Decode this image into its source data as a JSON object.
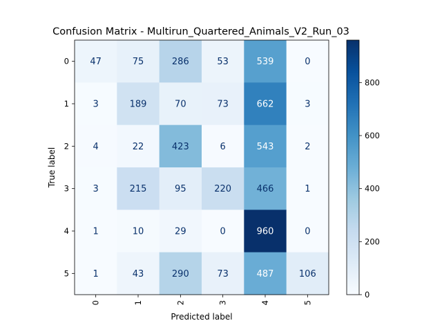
{
  "chart_data": {
    "type": "heatmap",
    "title": "Confusion Matrix - Multirun_Quartered_Animals_V2_Run_03",
    "xlabel": "Predicted label",
    "ylabel": "True label",
    "x_categories": [
      "0",
      "1",
      "2",
      "3",
      "4",
      "5"
    ],
    "y_categories": [
      "0",
      "1",
      "2",
      "3",
      "4",
      "5"
    ],
    "values": [
      [
        47,
        75,
        286,
        53,
        539,
        0
      ],
      [
        3,
        189,
        70,
        73,
        662,
        3
      ],
      [
        4,
        22,
        423,
        6,
        543,
        2
      ],
      [
        3,
        215,
        95,
        220,
        466,
        1
      ],
      [
        1,
        10,
        29,
        0,
        960,
        0
      ],
      [
        1,
        43,
        290,
        73,
        487,
        106
      ]
    ],
    "colormap": "Blues",
    "colorbar": {
      "range": [
        0,
        960
      ],
      "ticks": [
        0,
        200,
        400,
        600,
        800
      ]
    },
    "grid": false
  }
}
